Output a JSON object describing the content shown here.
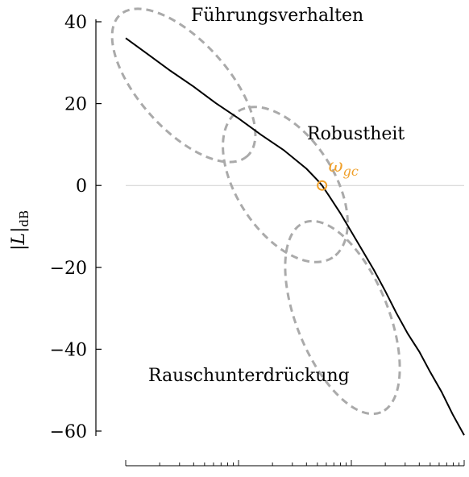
{
  "chart_data": {
    "type": "line",
    "title": "",
    "ylabel": "|L|dB",
    "ylabel_main": "|L|",
    "ylabel_sub": "dB",
    "xlabel": "",
    "xscale": "log",
    "ylim": [
      -60,
      40
    ],
    "yticks": [
      -60,
      -40,
      -20,
      0,
      20,
      40
    ],
    "ytick_labels": [
      "−60",
      "−40",
      "−20",
      "0",
      "20",
      "40"
    ],
    "xlim": [
      0.01,
      10
    ],
    "x_major_ticks": [
      0.01,
      0.1,
      1,
      10
    ],
    "series": [
      {
        "color": "#000000",
        "x": [
          0.01,
          0.0158,
          0.025,
          0.0398,
          0.063,
          0.1,
          0.158,
          0.25,
          0.4,
          0.5,
          0.55,
          0.63,
          0.8,
          1.0,
          1.26,
          1.58,
          2.0,
          2.5,
          3.16,
          4.0,
          5.0,
          6.3,
          7.9,
          10.0
        ],
        "y": [
          36,
          32,
          28,
          24.2,
          20.1,
          16.4,
          12.4,
          8.7,
          4.1,
          1.3,
          0,
          -2.4,
          -6.8,
          -11.3,
          -16.0,
          -20.6,
          -25.8,
          -31.1,
          -36.2,
          -40.6,
          -45.6,
          -50.4,
          -55.9,
          -61
        ]
      }
    ],
    "reference_line": {
      "y": 0
    },
    "gain_crossover": {
      "label": "ω",
      "label_sub": "gc",
      "x": 0.55,
      "y": 0,
      "color": "#f0a02a"
    },
    "regions": [
      {
        "label": "Führungsverhalten",
        "color": "#aaaaaa"
      },
      {
        "label": "Robustheit",
        "color": "#aaaaaa"
      },
      {
        "label": "Rauschunterdrückung",
        "color": "#aaaaaa"
      }
    ]
  }
}
